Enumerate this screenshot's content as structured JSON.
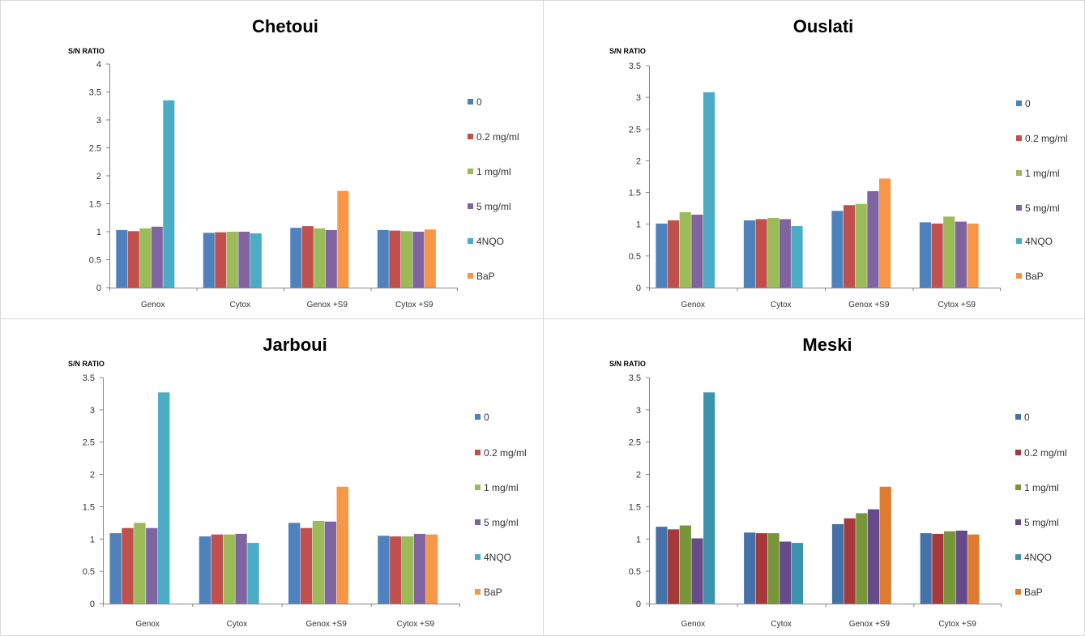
{
  "chart_data": [
    {
      "type": "bar",
      "title": "Chetoui",
      "ylabel": "S/N RATIO",
      "ylim": [
        0,
        4
      ],
      "yticks": [
        0,
        0.5,
        1,
        1.5,
        2,
        2.5,
        3,
        3.5,
        4
      ],
      "categories": [
        "Genox",
        "Cytox",
        "Genox +S9",
        "Cytox +S9"
      ],
      "legend": "right",
      "grid": false,
      "series": [
        {
          "name": "0",
          "color": "#4F81BD",
          "values": [
            1.03,
            0.98,
            1.07,
            1.03
          ]
        },
        {
          "name": "0.2 mg/ml",
          "color": "#C0504D",
          "values": [
            1.01,
            0.99,
            1.1,
            1.02
          ]
        },
        {
          "name": "1 mg/ml",
          "color": "#9BBB59",
          "values": [
            1.06,
            1.0,
            1.06,
            1.01
          ]
        },
        {
          "name": "5 mg/ml",
          "color": "#8064A2",
          "values": [
            1.09,
            1.0,
            1.03,
            1.0
          ]
        },
        {
          "name": "4NQO",
          "color": "#4BACC6",
          "values": [
            3.35,
            0.97,
            null,
            null
          ]
        },
        {
          "name": "BaP",
          "color": "#F79646",
          "values": [
            null,
            null,
            1.73,
            1.04
          ]
        }
      ]
    },
    {
      "type": "bar",
      "title": "Ouslati",
      "ylabel": "S/N RATIO",
      "ylim": [
        0,
        3.5
      ],
      "yticks": [
        0,
        0.5,
        1,
        1.5,
        2,
        2.5,
        3,
        3.5
      ],
      "categories": [
        "Genox",
        "Cytox",
        "Genox +S9",
        "Cytox +S9"
      ],
      "legend": "right",
      "grid": false,
      "series": [
        {
          "name": "0",
          "color": "#4F81BD",
          "values": [
            1.01,
            1.06,
            1.21,
            1.03
          ]
        },
        {
          "name": "0.2 mg/ml",
          "color": "#C0504D",
          "values": [
            1.06,
            1.08,
            1.3,
            1.01
          ]
        },
        {
          "name": "1 mg/ml",
          "color": "#9BBB59",
          "values": [
            1.19,
            1.1,
            1.32,
            1.12
          ]
        },
        {
          "name": "5 mg/ml",
          "color": "#8064A2",
          "values": [
            1.15,
            1.08,
            1.52,
            1.04
          ]
        },
        {
          "name": "4NQO",
          "color": "#4BACC6",
          "values": [
            3.08,
            0.97,
            null,
            null
          ]
        },
        {
          "name": "BaP",
          "color": "#F79646",
          "values": [
            null,
            null,
            1.72,
            1.01
          ]
        }
      ]
    },
    {
      "type": "bar",
      "title": "Jarboui",
      "ylabel": "S/N RATIO",
      "ylim": [
        0,
        3.5
      ],
      "yticks": [
        0,
        0.5,
        1,
        1.5,
        2,
        2.5,
        3,
        3.5
      ],
      "categories": [
        "Genox",
        "Cytox",
        "Genox +S9",
        "Cytox +S9"
      ],
      "legend": "right",
      "grid": false,
      "series": [
        {
          "name": "0",
          "color": "#4F81BD",
          "values": [
            1.09,
            1.04,
            1.25,
            1.05
          ]
        },
        {
          "name": "0.2 mg/ml",
          "color": "#C0504D",
          "values": [
            1.17,
            1.07,
            1.17,
            1.04
          ]
        },
        {
          "name": "1 mg/ml",
          "color": "#9BBB59",
          "values": [
            1.25,
            1.07,
            1.28,
            1.04
          ]
        },
        {
          "name": "5 mg/ml",
          "color": "#8064A2",
          "values": [
            1.17,
            1.08,
            1.27,
            1.08
          ]
        },
        {
          "name": "4NQO",
          "color": "#4BACC6",
          "values": [
            3.27,
            0.94,
            null,
            null
          ]
        },
        {
          "name": "BaP",
          "color": "#F79646",
          "values": [
            null,
            null,
            1.81,
            1.07
          ]
        }
      ]
    },
    {
      "type": "bar",
      "title": "Meski",
      "ylabel": "S/N RATIO",
      "ylim": [
        0,
        3.5
      ],
      "yticks": [
        0,
        0.5,
        1,
        1.5,
        2,
        2.5,
        3,
        3.5
      ],
      "categories": [
        "Genox",
        "Cytox",
        "Genox +S9",
        "Cytox +S9"
      ],
      "legend": "right",
      "grid": false,
      "series": [
        {
          "name": "0",
          "color": "#4472A8",
          "values": [
            1.19,
            1.1,
            1.23,
            1.09
          ]
        },
        {
          "name": "0.2 mg/ml",
          "color": "#A5383A",
          "values": [
            1.15,
            1.09,
            1.32,
            1.08
          ]
        },
        {
          "name": "1 mg/ml",
          "color": "#77963A",
          "values": [
            1.21,
            1.09,
            1.4,
            1.12
          ]
        },
        {
          "name": "5 mg/ml",
          "color": "#664A8A",
          "values": [
            1.01,
            0.96,
            1.46,
            1.13
          ]
        },
        {
          "name": "4NQO",
          "color": "#3C93AD",
          "values": [
            3.27,
            0.94,
            null,
            null
          ]
        },
        {
          "name": "BaP",
          "color": "#DD7C2E",
          "values": [
            null,
            null,
            1.81,
            1.07
          ]
        }
      ]
    }
  ]
}
